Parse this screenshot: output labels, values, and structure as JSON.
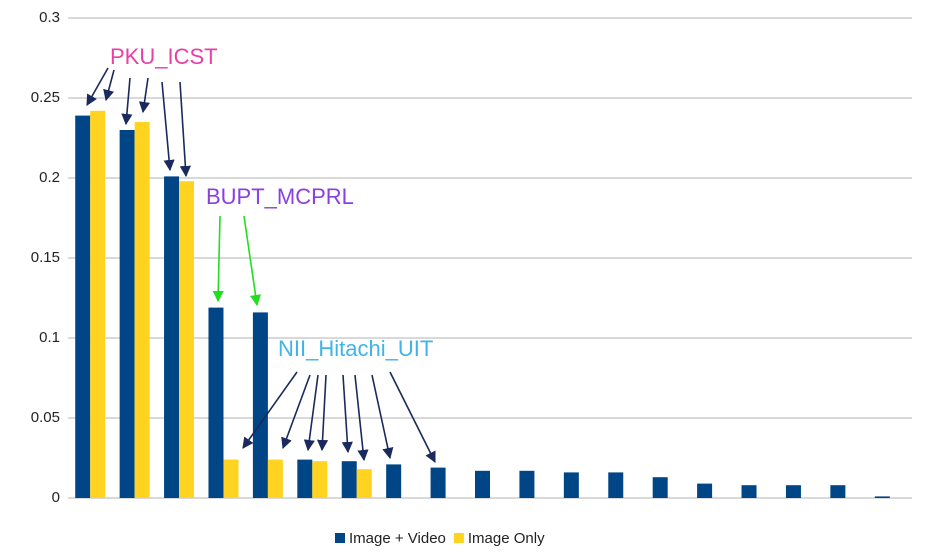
{
  "chart_data": {
    "type": "bar",
    "categories": [
      null,
      null,
      null,
      null,
      null,
      null,
      null,
      null,
      null,
      null,
      null,
      null,
      null,
      null,
      null,
      null,
      null,
      null,
      null
    ],
    "series": [
      {
        "name": "Image + Video",
        "color": "#004586",
        "values": [
          0.239,
          0.23,
          0.201,
          0.119,
          0.116,
          0.024,
          0.023,
          0.021,
          0.019,
          0.017,
          0.017,
          0.016,
          0.016,
          0.013,
          0.009,
          0.008,
          0.008,
          0.008,
          0.001
        ]
      },
      {
        "name": "Image Only",
        "color": "#ffd320",
        "values": [
          0.242,
          0.235,
          0.198,
          0.024,
          0.024,
          0.023,
          0.018,
          null,
          null,
          null,
          null,
          null,
          null,
          null,
          null,
          null,
          null,
          null,
          null
        ]
      }
    ],
    "ylim": [
      0,
      0.3
    ],
    "yticks": [
      0,
      0.05,
      0.1,
      0.15,
      0.2,
      0.25,
      0.3
    ],
    "grid": true,
    "legend": "bottom",
    "annotations": [
      "PKU_ICST",
      "BUPT_MCPRL",
      "NII_Hitachi_UIT"
    ]
  }
}
